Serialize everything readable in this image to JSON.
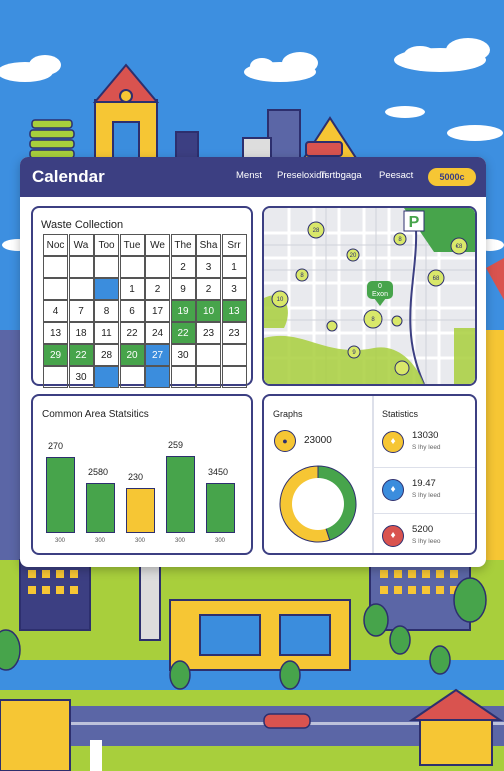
{
  "app": {
    "title": "Calendar"
  },
  "nav": {
    "items": [
      "Menst",
      "Preseloxidn",
      "Tsrtbgaga",
      "Peesact"
    ],
    "pill": "5000c"
  },
  "waste": {
    "title": "Waste Collection",
    "headers": [
      "Noc",
      "Wa",
      "Too",
      "Tue",
      "We",
      "The",
      "Sha",
      "Srr"
    ],
    "rows": [
      [
        {
          "t": "",
          "c": ""
        },
        {
          "t": "",
          "c": ""
        },
        {
          "t": "",
          "c": ""
        },
        {
          "t": "",
          "c": ""
        },
        {
          "t": "",
          "c": ""
        },
        {
          "t": "2",
          "c": ""
        },
        {
          "t": "3",
          "c": ""
        },
        {
          "t": "1",
          "c": ""
        }
      ],
      [
        {
          "t": "",
          "c": ""
        },
        {
          "t": "",
          "c": ""
        },
        {
          "t": "",
          "c": "blue"
        },
        {
          "t": "1",
          "c": ""
        },
        {
          "t": "2",
          "c": ""
        },
        {
          "t": "9",
          "c": ""
        },
        {
          "t": "2",
          "c": ""
        },
        {
          "t": "3",
          "c": ""
        }
      ],
      [
        {
          "t": "4",
          "c": ""
        },
        {
          "t": "7",
          "c": ""
        },
        {
          "t": "8",
          "c": ""
        },
        {
          "t": "6",
          "c": ""
        },
        {
          "t": "17",
          "c": ""
        },
        {
          "t": "19",
          "c": "green"
        },
        {
          "t": "10",
          "c": "green"
        },
        {
          "t": "13",
          "c": "green"
        }
      ],
      [
        {
          "t": "13",
          "c": ""
        },
        {
          "t": "18",
          "c": ""
        },
        {
          "t": "11",
          "c": ""
        },
        {
          "t": "22",
          "c": ""
        },
        {
          "t": "24",
          "c": ""
        },
        {
          "t": "22",
          "c": "green"
        },
        {
          "t": "23",
          "c": ""
        },
        {
          "t": "23",
          "c": ""
        }
      ],
      [
        {
          "t": "29",
          "c": "green"
        },
        {
          "t": "22",
          "c": "green"
        },
        {
          "t": "28",
          "c": ""
        },
        {
          "t": "20",
          "c": "green"
        },
        {
          "t": "27",
          "c": "blue"
        },
        {
          "t": "30",
          "c": ""
        },
        {
          "t": "",
          "c": ""
        },
        {
          "t": "",
          "c": ""
        }
      ],
      [
        {
          "t": "",
          "c": ""
        },
        {
          "t": "30",
          "c": ""
        },
        {
          "t": "",
          "c": "blue"
        },
        {
          "t": "",
          "c": ""
        },
        {
          "t": "",
          "c": "blue"
        },
        {
          "t": "",
          "c": ""
        },
        {
          "t": "",
          "c": ""
        },
        {
          "t": "",
          "c": ""
        }
      ]
    ]
  },
  "map": {
    "parking_label": "P",
    "pin_label_1": "0",
    "pin_label_2": "Exon",
    "markers": [
      "28",
      "€8",
      "8",
      "20",
      "8",
      "68",
      "10",
      "8",
      "9"
    ]
  },
  "stats_chart": {
    "title": "Common Area Statsitics",
    "tick_labels": [
      "300",
      "300",
      "300",
      "300",
      "300"
    ]
  },
  "chart_data": {
    "type": "bar",
    "title": "Common Area Statsitics",
    "categories": [
      "300",
      "300",
      "300",
      "300",
      "300"
    ],
    "values": [
      270,
      2580,
      230,
      259,
      3450
    ],
    "bar_heights_relative": [
      0.9,
      0.6,
      0.53,
      0.92,
      0.6
    ],
    "colors": [
      "#47a44b",
      "#47a44b",
      "#f6c634",
      "#47a44b",
      "#47a44b"
    ]
  },
  "graphs": {
    "title": "Graphs",
    "value": "23000",
    "donut": {
      "segments": [
        {
          "value": 0.45,
          "color": "#47a44b"
        },
        {
          "value": 0.55,
          "color": "#f6c634"
        }
      ]
    }
  },
  "statistics": {
    "title": "Statistics",
    "rows": [
      {
        "value": "13030",
        "sub": "S lhy leed",
        "color": "#f6c634",
        "icon": "♦"
      },
      {
        "value": "19.47",
        "sub": "S lhy leed",
        "color": "#3b8ddd",
        "icon": "♦"
      },
      {
        "value": "5200",
        "sub": "S lhy leeo",
        "color": "#d9534f",
        "icon": "♦"
      }
    ]
  }
}
